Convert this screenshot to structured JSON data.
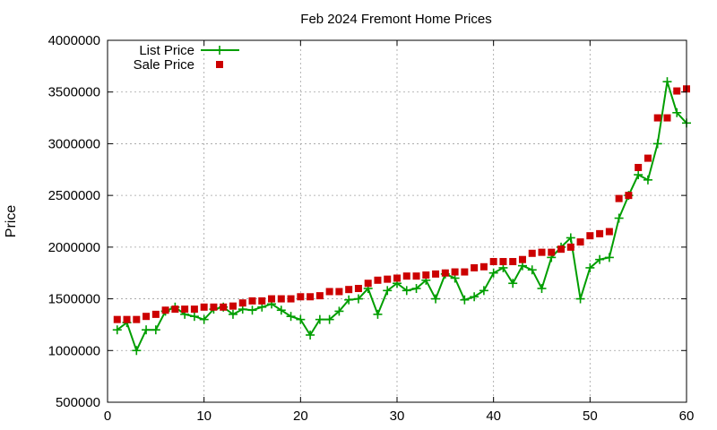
{
  "chart_data": {
    "type": "line",
    "title": "Feb 2024 Fremont Home Prices",
    "xlabel": "",
    "ylabel": "Price",
    "xlim": [
      0,
      60
    ],
    "ylim": [
      500000,
      4000000
    ],
    "x_ticks": [
      0,
      10,
      20,
      30,
      40,
      50,
      60
    ],
    "y_ticks": [
      500000,
      1000000,
      1500000,
      2000000,
      2500000,
      3000000,
      3500000,
      4000000
    ],
    "grid": true,
    "legend_position": "top-left",
    "series": [
      {
        "name": "List Price",
        "style": "line+cross",
        "color": "#009e00",
        "x": [
          1,
          2,
          3,
          4,
          5,
          6,
          7,
          8,
          9,
          10,
          11,
          12,
          13,
          14,
          15,
          16,
          17,
          18,
          19,
          20,
          21,
          22,
          23,
          24,
          25,
          26,
          27,
          28,
          29,
          30,
          31,
          32,
          33,
          34,
          35,
          36,
          37,
          38,
          39,
          40,
          41,
          42,
          43,
          44,
          45,
          46,
          47,
          48,
          49,
          50,
          51,
          52,
          53,
          54,
          55,
          56,
          57,
          58,
          59,
          60
        ],
        "y": [
          1200000,
          1270000,
          1000000,
          1200000,
          1200000,
          1380000,
          1420000,
          1350000,
          1330000,
          1300000,
          1400000,
          1420000,
          1350000,
          1400000,
          1390000,
          1420000,
          1450000,
          1390000,
          1330000,
          1300000,
          1150000,
          1300000,
          1300000,
          1380000,
          1490000,
          1500000,
          1600000,
          1350000,
          1580000,
          1650000,
          1580000,
          1600000,
          1680000,
          1500000,
          1740000,
          1700000,
          1490000,
          1520000,
          1580000,
          1750000,
          1800000,
          1650000,
          1820000,
          1780000,
          1600000,
          1900000,
          2000000,
          2090000,
          1500000,
          1800000,
          1880000,
          1900000,
          2280000,
          2500000,
          2700000,
          2650000,
          3000000,
          3600000,
          3300000,
          3200000
        ]
      },
      {
        "name": "Sale Price",
        "style": "square-points",
        "color": "#cc0000",
        "x": [
          1,
          2,
          3,
          4,
          5,
          6,
          7,
          8,
          9,
          10,
          11,
          12,
          13,
          14,
          15,
          16,
          17,
          18,
          19,
          20,
          21,
          22,
          23,
          24,
          25,
          26,
          27,
          28,
          29,
          30,
          31,
          32,
          33,
          34,
          35,
          36,
          37,
          38,
          39,
          40,
          41,
          42,
          43,
          44,
          45,
          46,
          47,
          48,
          49,
          50,
          51,
          52,
          53,
          54,
          55,
          56,
          57,
          58,
          59,
          60
        ],
        "y": [
          1300000,
          1300000,
          1300000,
          1330000,
          1350000,
          1390000,
          1400000,
          1400000,
          1400000,
          1420000,
          1420000,
          1420000,
          1430000,
          1460000,
          1480000,
          1480000,
          1500000,
          1500000,
          1500000,
          1520000,
          1520000,
          1530000,
          1570000,
          1570000,
          1590000,
          1600000,
          1650000,
          1680000,
          1690000,
          1700000,
          1720000,
          1720000,
          1730000,
          1740000,
          1750000,
          1760000,
          1760000,
          1800000,
          1810000,
          1860000,
          1860000,
          1860000,
          1880000,
          1940000,
          1950000,
          1950000,
          1980000,
          2000000,
          2050000,
          2110000,
          2130000,
          2150000,
          2470000,
          2500000,
          2770000,
          2860000,
          3250000,
          3250000,
          3510000,
          3530000
        ]
      }
    ]
  }
}
